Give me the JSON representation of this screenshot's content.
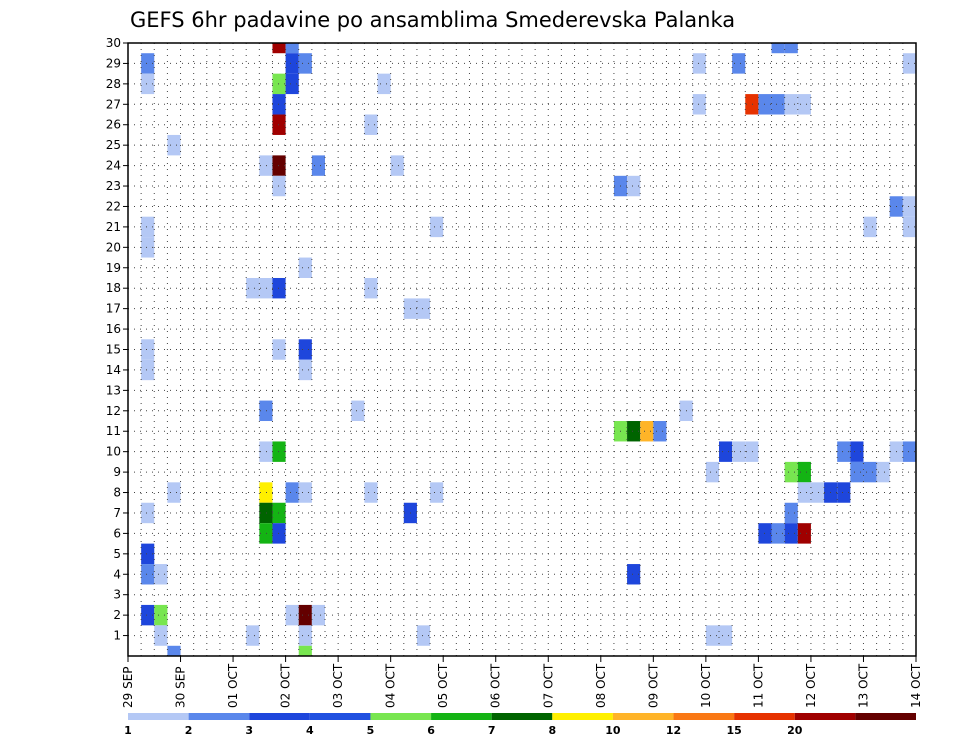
{
  "chart_data": {
    "type": "heatmap",
    "title": "GEFS 6hr padavine po ansamblima Smederevska Palanka",
    "xlabel": "",
    "ylabel": "",
    "x_ticks": [
      "29 SEP",
      "30 SEP",
      "01 OCT",
      "02 OCT",
      "03 OCT",
      "04 OCT",
      "05 OCT",
      "06 OCT",
      "07 OCT",
      "08 OCT",
      "09 OCT",
      "10 OCT",
      "11 OCT",
      "12 OCT",
      "13 OCT",
      "14 OCT"
    ],
    "xlim": [
      0,
      60
    ],
    "x_unit": "6-hour steps from 29 SEP",
    "y_ticks": [
      1,
      2,
      3,
      4,
      5,
      6,
      7,
      8,
      9,
      10,
      11,
      12,
      13,
      14,
      15,
      16,
      17,
      18,
      19,
      20,
      21,
      22,
      23,
      24,
      25,
      26,
      27,
      28,
      29,
      30
    ],
    "ylim": [
      0,
      30
    ],
    "grid": true,
    "legend": {
      "placement": "bottom",
      "levels": [
        "1",
        "2",
        "3",
        "4",
        "5",
        "6",
        "7",
        "8",
        "10",
        "12",
        "15",
        "20"
      ],
      "colors": [
        "#b4c8f5",
        "#5a87eb",
        "#1e46dc",
        "#2050e0",
        "#78e650",
        "#14b414",
        "#006400",
        "#fff000",
        "#ffb428",
        "#fa7814",
        "#e63200",
        "#a00000",
        "#640000"
      ]
    },
    "cells": [
      [
        1,
        29,
        2
      ],
      [
        1,
        28,
        1
      ],
      [
        1,
        21,
        1
      ],
      [
        1,
        20,
        1
      ],
      [
        1,
        15,
        1
      ],
      [
        1,
        14,
        1
      ],
      [
        1,
        7,
        1
      ],
      [
        1,
        5,
        3
      ],
      [
        1,
        4,
        2
      ],
      [
        1,
        2,
        3
      ],
      [
        2,
        4,
        1
      ],
      [
        2,
        2,
        5
      ],
      [
        2,
        1,
        1
      ],
      [
        3,
        25,
        1
      ],
      [
        3,
        8,
        1
      ],
      [
        3,
        0,
        2
      ],
      [
        9,
        18,
        1
      ],
      [
        9,
        1,
        1
      ],
      [
        10,
        24,
        1
      ],
      [
        10,
        18,
        1
      ],
      [
        10,
        12,
        2
      ],
      [
        10,
        10,
        1
      ],
      [
        10,
        8,
        8
      ],
      [
        10,
        7,
        7
      ],
      [
        10,
        6,
        6
      ],
      [
        11,
        30,
        12
      ],
      [
        11,
        28,
        5
      ],
      [
        11,
        27,
        3
      ],
      [
        11,
        26,
        12
      ],
      [
        11,
        24,
        13
      ],
      [
        11,
        23,
        1
      ],
      [
        11,
        18,
        3
      ],
      [
        11,
        15,
        1
      ],
      [
        11,
        10,
        6
      ],
      [
        11,
        7,
        6
      ],
      [
        11,
        6,
        3
      ],
      [
        12,
        30,
        2
      ],
      [
        12,
        29,
        3
      ],
      [
        12,
        28,
        3
      ],
      [
        12,
        8,
        2
      ],
      [
        12,
        2,
        1
      ],
      [
        13,
        29,
        2
      ],
      [
        13,
        19,
        1
      ],
      [
        13,
        15,
        3
      ],
      [
        13,
        14,
        1
      ],
      [
        13,
        8,
        1
      ],
      [
        13,
        2,
        13
      ],
      [
        13,
        1,
        1
      ],
      [
        13,
        0,
        5
      ],
      [
        14,
        24,
        2
      ],
      [
        14,
        2,
        1
      ],
      [
        17,
        12,
        1
      ],
      [
        18,
        26,
        1
      ],
      [
        18,
        18,
        1
      ],
      [
        18,
        8,
        1
      ],
      [
        19,
        28,
        1
      ],
      [
        20,
        24,
        1
      ],
      [
        21,
        7,
        3
      ],
      [
        21,
        17,
        1
      ],
      [
        22,
        17,
        1
      ],
      [
        22,
        1,
        1
      ],
      [
        23,
        21,
        1
      ],
      [
        23,
        8,
        1
      ],
      [
        37,
        23,
        2
      ],
      [
        38,
        23,
        1
      ],
      [
        37,
        11,
        5
      ],
      [
        38,
        11,
        7
      ],
      [
        39,
        11,
        9
      ],
      [
        40,
        11,
        2
      ],
      [
        38,
        4,
        3
      ],
      [
        42,
        12,
        1
      ],
      [
        43,
        29,
        1
      ],
      [
        43,
        27,
        1
      ],
      [
        44,
        9,
        1
      ],
      [
        44,
        1,
        1
      ],
      [
        45,
        10,
        3
      ],
      [
        45,
        1,
        1
      ],
      [
        46,
        10,
        1
      ],
      [
        46,
        29,
        2
      ],
      [
        47,
        27,
        11
      ],
      [
        47,
        10,
        1
      ],
      [
        48,
        27,
        2
      ],
      [
        48,
        6,
        3
      ],
      [
        49,
        30,
        2
      ],
      [
        49,
        27,
        2
      ],
      [
        49,
        6,
        2
      ],
      [
        50,
        30,
        2
      ],
      [
        50,
        27,
        1
      ],
      [
        50,
        7,
        2
      ],
      [
        50,
        6,
        3
      ],
      [
        50,
        9,
        5
      ],
      [
        51,
        27,
        1
      ],
      [
        51,
        9,
        6
      ],
      [
        51,
        6,
        12
      ],
      [
        51,
        8,
        1
      ],
      [
        52,
        8,
        1
      ],
      [
        53,
        8,
        3
      ],
      [
        54,
        8,
        3
      ],
      [
        54,
        10,
        2
      ],
      [
        55,
        10,
        3
      ],
      [
        55,
        9,
        2
      ],
      [
        56,
        9,
        2
      ],
      [
        56,
        21,
        1
      ],
      [
        57,
        9,
        1
      ],
      [
        58,
        22,
        2
      ],
      [
        58,
        10,
        1
      ],
      [
        59,
        22,
        1
      ],
      [
        59,
        21,
        1
      ],
      [
        59,
        10,
        2
      ],
      [
        59,
        29,
        1
      ]
    ]
  }
}
